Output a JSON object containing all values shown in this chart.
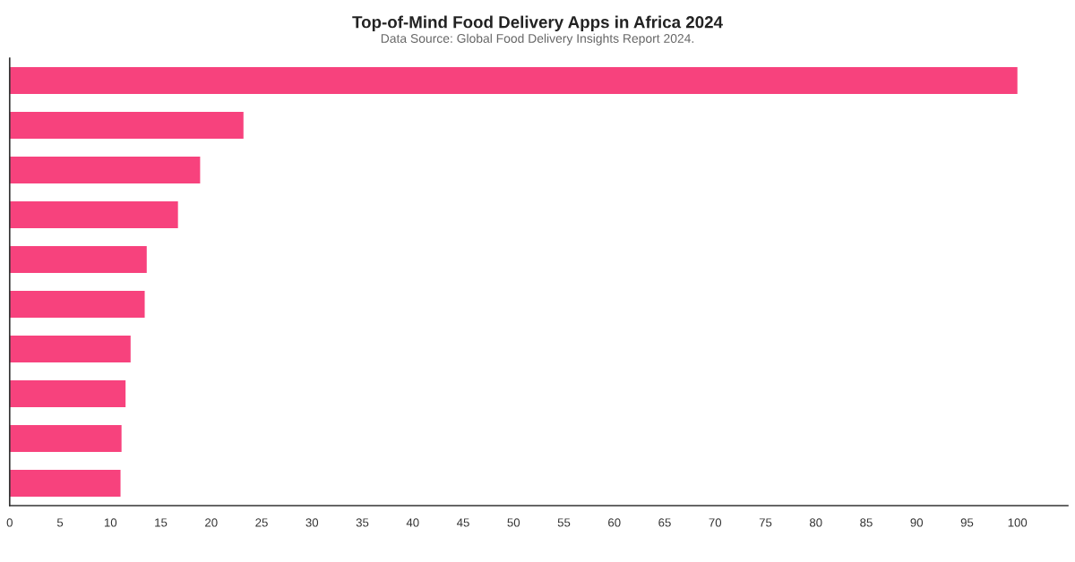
{
  "chart_data": {
    "type": "bar",
    "orientation": "horizontal",
    "title": "Top-of-Mind Food Delivery Apps in Africa 2024",
    "subtitle": "Data Source: Global Food Delivery Insights Report 2024.",
    "categories": [
      null,
      null,
      null,
      null,
      null,
      null,
      null,
      null,
      null,
      null
    ],
    "values": [
      100,
      23.2,
      18.9,
      16.7,
      13.6,
      13.4,
      12.0,
      11.5,
      11.1,
      11.0
    ],
    "color": "#f7427d",
    "xlim": [
      0,
      105
    ],
    "xticks": [
      0,
      5,
      10,
      15,
      20,
      25,
      30,
      35,
      40,
      45,
      50,
      55,
      60,
      65,
      70,
      75,
      80,
      85,
      90,
      95,
      100
    ],
    "tick_labels": "x",
    "grid": false,
    "legend": false
  }
}
